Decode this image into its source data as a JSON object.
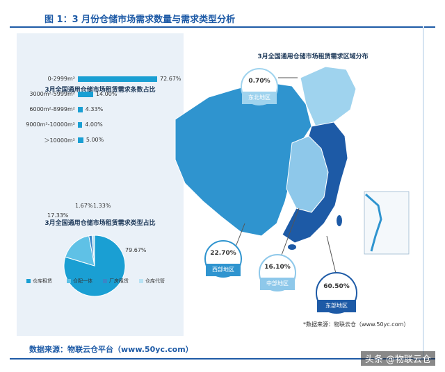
{
  "figure_title": "图 1：3 月份仓储市场需求数量与需求类型分析",
  "footer_source": "数据来源：物联云仓平台（www.50yc.com）",
  "watermark": "头条 @物联云仓",
  "colors": {
    "accent": "#1d5aa6",
    "bar": "#1a9fd3"
  },
  "chart_data": [
    {
      "type": "bar",
      "title": "3月全国通用仓储市场租赁需求条数占比",
      "categories": [
        "0-2999m²",
        "3000m²-5999m²",
        "6000m²-8999m²",
        "9000m²-10000m²",
        "＞10000m²"
      ],
      "values": [
        72.67,
        14.0,
        4.33,
        4.0,
        5.0
      ],
      "value_labels": [
        "72.67%",
        "14.00%",
        "4.33%",
        "4.00%",
        "5.00%"
      ],
      "orientation": "horizontal"
    },
    {
      "type": "pie",
      "title": "3月全国通用仓储市场租赁需求类型占比",
      "labels": [
        "仓库租赁",
        "仓配一体",
        "厂房租赁",
        "仓库代管"
      ],
      "values": [
        79.67,
        17.33,
        1.67,
        1.33
      ],
      "value_labels": [
        "79.67%",
        "17.33%",
        "1.67%",
        "1.33%"
      ],
      "colors": [
        "#1a9fd3",
        "#5fc1e6",
        "#3a86c8",
        "#b9e3f4"
      ],
      "legend": "bottom"
    },
    {
      "type": "map",
      "title": "3月全国通用仓储市场租赁需求区域分布",
      "regions": [
        {
          "name": "东北地区",
          "value": 0.7,
          "label": "0.70%",
          "color": "#9fd3ee"
        },
        {
          "name": "西部地区",
          "value": 22.7,
          "label": "22.70%",
          "color": "#2f94cf"
        },
        {
          "name": "中部地区",
          "value": 16.1,
          "label": "16.10%",
          "color": "#8ec8ea"
        },
        {
          "name": "东部地区",
          "value": 60.5,
          "label": "60.50%",
          "color": "#1d5aa6"
        }
      ],
      "source": "*数据来源：物联云仓（www.50yc.com）"
    }
  ]
}
